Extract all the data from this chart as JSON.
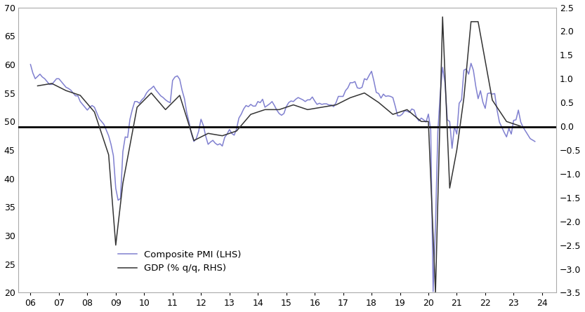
{
  "pmi_color": "#8080d0",
  "gdp_color": "#333333",
  "hline_color": "#000000",
  "lhs_ylim": [
    20,
    70
  ],
  "rhs_ylim": [
    -3.5,
    2.5
  ],
  "lhs_yticks": [
    20,
    25,
    30,
    35,
    40,
    45,
    50,
    55,
    60,
    65,
    70
  ],
  "rhs_yticks": [
    -3.5,
    -3.0,
    -2.5,
    -2.0,
    -1.5,
    -1.0,
    -0.5,
    0.0,
    0.5,
    1.0,
    1.5,
    2.0,
    2.5
  ],
  "hline_lhs_value": 49.1,
  "xtick_labels": [
    "06",
    "07",
    "08",
    "09",
    "10",
    "11",
    "12",
    "13",
    "14",
    "15",
    "16",
    "17",
    "18",
    "19",
    "20",
    "21",
    "22",
    "23",
    "24"
  ],
  "legend_labels": [
    "Composite PMI (LHS)",
    "GDP (% q/q, RHS)"
  ],
  "pmi_x": [
    2006.0,
    2006.083,
    2006.167,
    2006.25,
    2006.333,
    2006.417,
    2006.5,
    2006.583,
    2006.667,
    2006.75,
    2006.833,
    2006.917,
    2007.0,
    2007.083,
    2007.167,
    2007.25,
    2007.333,
    2007.417,
    2007.5,
    2007.583,
    2007.667,
    2007.75,
    2007.833,
    2007.917,
    2008.0,
    2008.083,
    2008.167,
    2008.25,
    2008.333,
    2008.417,
    2008.5,
    2008.583,
    2008.667,
    2008.75,
    2008.833,
    2008.917,
    2009.0,
    2009.083,
    2009.167,
    2009.25,
    2009.333,
    2009.417,
    2009.5,
    2009.583,
    2009.667,
    2009.75,
    2009.833,
    2009.917,
    2010.0,
    2010.083,
    2010.167,
    2010.25,
    2010.333,
    2010.417,
    2010.5,
    2010.583,
    2010.667,
    2010.75,
    2010.833,
    2010.917,
    2011.0,
    2011.083,
    2011.167,
    2011.25,
    2011.333,
    2011.417,
    2011.5,
    2011.583,
    2011.667,
    2011.75,
    2011.833,
    2011.917,
    2012.0,
    2012.083,
    2012.167,
    2012.25,
    2012.333,
    2012.417,
    2012.5,
    2012.583,
    2012.667,
    2012.75,
    2012.833,
    2012.917,
    2013.0,
    2013.083,
    2013.167,
    2013.25,
    2013.333,
    2013.417,
    2013.5,
    2013.583,
    2013.667,
    2013.75,
    2013.833,
    2013.917,
    2014.0,
    2014.083,
    2014.167,
    2014.25,
    2014.333,
    2014.417,
    2014.5,
    2014.583,
    2014.667,
    2014.75,
    2014.833,
    2014.917,
    2015.0,
    2015.083,
    2015.167,
    2015.25,
    2015.333,
    2015.417,
    2015.5,
    2015.583,
    2015.667,
    2015.75,
    2015.833,
    2015.917,
    2016.0,
    2016.083,
    2016.167,
    2016.25,
    2016.333,
    2016.417,
    2016.5,
    2016.583,
    2016.667,
    2016.75,
    2016.833,
    2016.917,
    2017.0,
    2017.083,
    2017.167,
    2017.25,
    2017.333,
    2017.417,
    2017.5,
    2017.583,
    2017.667,
    2017.75,
    2017.833,
    2017.917,
    2018.0,
    2018.083,
    2018.167,
    2018.25,
    2018.333,
    2018.417,
    2018.5,
    2018.583,
    2018.667,
    2018.75,
    2018.833,
    2018.917,
    2019.0,
    2019.083,
    2019.167,
    2019.25,
    2019.333,
    2019.417,
    2019.5,
    2019.583,
    2019.667,
    2019.75,
    2019.833,
    2019.917,
    2020.0,
    2020.083,
    2020.167,
    2020.25,
    2020.333,
    2020.417,
    2020.5,
    2020.583,
    2020.667,
    2020.75,
    2020.833,
    2020.917,
    2021.0,
    2021.083,
    2021.167,
    2021.25,
    2021.333,
    2021.417,
    2021.5,
    2021.583,
    2021.667,
    2021.75,
    2021.833,
    2021.917,
    2022.0,
    2022.083,
    2022.167,
    2022.25,
    2022.333,
    2022.417,
    2022.5,
    2022.583,
    2022.667,
    2022.75,
    2022.833,
    2022.917,
    2023.0,
    2023.083,
    2023.167,
    2023.25,
    2023.333,
    2023.583,
    2023.75
  ],
  "pmi_y": [
    60.0,
    58.5,
    57.5,
    57.9,
    58.3,
    57.8,
    57.5,
    57.0,
    56.5,
    56.5,
    57.0,
    57.5,
    57.5,
    57.0,
    56.5,
    56.0,
    55.8,
    55.5,
    55.0,
    54.5,
    54.5,
    53.5,
    53.0,
    52.5,
    52.0,
    52.5,
    52.8,
    52.5,
    51.5,
    50.5,
    50.0,
    49.5,
    48.5,
    47.5,
    46.0,
    44.0,
    38.3,
    36.2,
    36.5,
    44.7,
    47.3,
    47.2,
    50.4,
    52.1,
    53.5,
    53.5,
    53.2,
    53.8,
    54.2,
    55.0,
    55.5,
    55.8,
    56.2,
    55.5,
    55.0,
    54.5,
    54.2,
    53.8,
    53.5,
    53.3,
    57.2,
    57.8,
    58.0,
    57.4,
    55.5,
    54.0,
    51.5,
    49.8,
    47.8,
    46.5,
    47.0,
    48.3,
    50.4,
    49.3,
    47.4,
    46.0,
    46.4,
    46.7,
    46.2,
    45.9,
    46.1,
    45.7,
    47.2,
    47.8,
    48.6,
    47.9,
    47.6,
    48.7,
    50.6,
    51.3,
    52.2,
    52.8,
    52.6,
    53.0,
    52.7,
    52.7,
    53.5,
    53.3,
    53.9,
    52.5,
    52.8,
    53.1,
    53.5,
    52.8,
    52.0,
    51.4,
    51.1,
    51.4,
    52.6,
    53.3,
    53.6,
    53.5,
    53.9,
    54.2,
    54.0,
    53.8,
    53.5,
    53.8,
    53.8,
    54.3,
    53.6,
    53.0,
    53.2,
    53.0,
    53.1,
    53.1,
    52.9,
    52.9,
    52.6,
    53.3,
    54.4,
    54.4,
    54.4,
    55.4,
    55.9,
    56.8,
    56.8,
    57.0,
    55.9,
    55.8,
    56.0,
    57.5,
    57.3,
    58.1,
    58.8,
    57.1,
    55.1,
    54.9,
    54.1,
    54.8,
    54.4,
    54.5,
    54.4,
    54.2,
    52.7,
    51.0,
    51.0,
    51.3,
    51.9,
    51.8,
    51.6,
    52.2,
    52.0,
    50.7,
    50.1,
    50.6,
    50.3,
    49.9,
    51.3,
    48.5,
    20.2,
    31.9,
    48.2,
    54.9,
    59.5,
    56.8,
    50.3,
    50.0,
    45.3,
    49.1,
    47.8,
    53.2,
    53.8,
    59.0,
    59.2,
    58.3,
    60.2,
    59.0,
    56.2,
    54.0,
    55.4,
    53.4,
    52.3,
    54.9,
    55.0,
    54.8,
    54.9,
    52.0,
    49.9,
    49.0,
    48.1,
    47.3,
    48.8,
    47.8,
    50.2,
    50.3,
    52.0,
    49.9,
    49.0,
    47.0,
    46.5
  ],
  "gdp_x": [
    2006.25,
    2006.75,
    2007.25,
    2007.75,
    2008.25,
    2008.75,
    2009.0,
    2009.25,
    2009.75,
    2010.25,
    2010.75,
    2011.25,
    2011.75,
    2012.25,
    2012.75,
    2013.25,
    2013.75,
    2014.25,
    2014.75,
    2015.25,
    2015.75,
    2016.25,
    2016.75,
    2017.25,
    2017.75,
    2018.25,
    2018.75,
    2019.25,
    2019.75,
    2020.0,
    2020.25,
    2020.5,
    2020.75,
    2021.0,
    2021.25,
    2021.5,
    2021.75,
    2022.25,
    2022.75,
    2023.25
  ],
  "gdp_y": [
    0.85,
    0.9,
    0.75,
    0.65,
    0.3,
    -0.6,
    -2.5,
    -1.2,
    0.4,
    0.7,
    0.35,
    0.65,
    -0.3,
    -0.15,
    -0.2,
    -0.1,
    0.25,
    0.35,
    0.35,
    0.45,
    0.35,
    0.4,
    0.45,
    0.6,
    0.7,
    0.5,
    0.25,
    0.35,
    0.1,
    0.1,
    -3.5,
    2.3,
    -1.3,
    -0.5,
    0.6,
    2.2,
    2.2,
    0.55,
    0.1,
    0.0
  ]
}
